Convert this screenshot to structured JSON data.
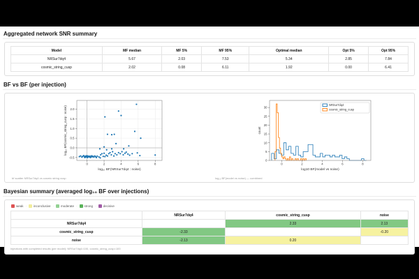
{
  "sections": {
    "snr": "Aggregated network SNR summary",
    "bf": "BF vs BF (per injection)",
    "bayes": "Bayesian summary (averaged log₁₀ BF over injections)"
  },
  "snr_table": {
    "columns": [
      "Model",
      "MF median",
      "MF 5%",
      "MF 95%",
      "Optimal median",
      "Opt 5%",
      "Opt 95%"
    ],
    "rows": [
      {
        "model": "NRSur7dq4",
        "values": [
          "5.67",
          "2.03",
          "7.53",
          "5.34",
          "2.85",
          "7.84"
        ]
      },
      {
        "model": "cosmic_string_cusp",
        "values": [
          "2.02",
          "0.08",
          "6.11",
          "1.92",
          "0.00",
          "6.41"
        ]
      }
    ]
  },
  "captions": {
    "scatter": "bf scatter NRSur7dq4 vs cosmic string cusp",
    "histogram": "log₁₀ BF(model vs noise) — combined"
  },
  "chart_data": [
    {
      "type": "scatter",
      "title": "",
      "xlabel": "log₁₀ BF(NRSur7dq4 : noise)",
      "ylabel": "log₁₀ BF(cosmic_string_cusp : noise)",
      "xlim": [
        -1.2,
        8.8
      ],
      "ylim": [
        -0.65,
        2.45
      ],
      "xticks": [
        0,
        2,
        4,
        6,
        8
      ],
      "yticks": [
        -0.5,
        0,
        0.5,
        1,
        1.5,
        2
      ],
      "grid": true,
      "zero_lines": true,
      "marker_color": "#1f77b4",
      "points": [
        [
          -0.9,
          -0.45
        ],
        [
          -0.75,
          -0.42
        ],
        [
          -0.6,
          -0.48
        ],
        [
          -0.5,
          -0.44
        ],
        [
          -0.4,
          -0.4
        ],
        [
          -0.3,
          -0.46
        ],
        [
          -0.25,
          -0.5
        ],
        [
          -0.2,
          -0.43
        ],
        [
          -0.1,
          -0.47
        ],
        [
          -0.05,
          -0.41
        ],
        [
          0,
          -0.45
        ],
        [
          0.05,
          -0.5
        ],
        [
          0.1,
          -0.42
        ],
        [
          0.15,
          -0.46
        ],
        [
          0.2,
          -0.44
        ],
        [
          0.3,
          -0.47
        ],
        [
          0.35,
          -0.43
        ],
        [
          0.4,
          -0.5
        ],
        [
          0.5,
          -0.45
        ],
        [
          0.55,
          -0.41
        ],
        [
          0.6,
          -0.46
        ],
        [
          0.7,
          -0.44
        ],
        [
          0.8,
          -0.48
        ],
        [
          0.9,
          -0.42
        ],
        [
          1,
          -0.45
        ],
        [
          1.1,
          -0.5
        ],
        [
          1.2,
          -0.43
        ],
        [
          1.4,
          -0.47
        ],
        [
          1.55,
          -0.52
        ],
        [
          1.6,
          -0.36
        ],
        [
          1.75,
          -0.3
        ],
        [
          1.9,
          -0.44
        ],
        [
          2,
          -0.28
        ],
        [
          2.1,
          -0.45
        ],
        [
          2.25,
          -0.38
        ],
        [
          2.4,
          -0.42
        ],
        [
          2.55,
          -0.3
        ],
        [
          2.7,
          -0.25
        ],
        [
          2.85,
          -0.36
        ],
        [
          3,
          -0.2
        ],
        [
          3.15,
          -0.42
        ],
        [
          3.3,
          -0.3
        ],
        [
          3.5,
          -0.36
        ],
        [
          3.7,
          -0.25
        ],
        [
          3.9,
          -0.3
        ],
        [
          4.1,
          -0.2
        ],
        [
          4.25,
          -0.36
        ],
        [
          4.45,
          -0.28
        ],
        [
          4.6,
          -0.22
        ],
        [
          4.8,
          -0.32
        ],
        [
          5,
          -0.38
        ],
        [
          5.3,
          -0.3
        ],
        [
          5.9,
          -0.26
        ],
        [
          6.2,
          -0.4
        ],
        [
          8,
          -0.37
        ],
        [
          1.5,
          -0.05
        ],
        [
          2,
          0.05
        ],
        [
          2.3,
          -0.1
        ],
        [
          2.9,
          -0.05
        ],
        [
          3.4,
          0.22
        ],
        [
          4.3,
          -0.05
        ],
        [
          4.9,
          0.1
        ],
        [
          2.4,
          0.7
        ],
        [
          2.9,
          0.68
        ],
        [
          3.2,
          0.7
        ],
        [
          5.6,
          0.85
        ],
        [
          6.3,
          0.5
        ],
        [
          2.1,
          1.6
        ],
        [
          3.7,
          1.9
        ],
        [
          4,
          1.67
        ],
        [
          5.8,
          2.25
        ]
      ]
    },
    {
      "type": "histogram",
      "style": "step",
      "title": "",
      "xlabel": "log10 BF(model vs noise)",
      "ylabel": "count",
      "xlim": [
        -1.2,
        8.8
      ],
      "ylim": [
        0,
        34
      ],
      "xticks": [
        0,
        2,
        4,
        6,
        8
      ],
      "yticks": [
        0,
        5,
        10,
        15,
        20,
        25,
        30
      ],
      "grid": false,
      "legend_position": "upper right",
      "series": [
        {
          "name": "NRSur7dq4",
          "color": "#1f77b4",
          "bin_start": -1.0,
          "bin_width": 0.24,
          "counts": [
            4,
            1,
            6,
            4,
            3,
            10,
            6,
            8,
            4,
            3,
            8,
            3,
            2,
            5,
            5,
            9,
            9,
            3,
            2,
            2,
            4,
            2,
            3,
            3,
            2,
            3,
            2,
            2,
            3,
            1,
            2,
            1,
            0,
            0,
            0,
            0,
            0,
            1,
            0
          ]
        },
        {
          "name": "cosmic_string_cusp",
          "color": "#ff7f0e",
          "bin_start": -0.66,
          "bin_width": 0.11,
          "counts": [
            5,
            32,
            27,
            13,
            7,
            4,
            2,
            1,
            2,
            1,
            0,
            1,
            0,
            2,
            0,
            1,
            0,
            0,
            1,
            0,
            1,
            0,
            0,
            1,
            0,
            1,
            0,
            1
          ]
        }
      ]
    }
  ],
  "bayes": {
    "legend": [
      {
        "label": "weak",
        "color": "#dd5353"
      },
      {
        "label": "inconclusive",
        "color": "#f1ec9b"
      },
      {
        "label": "moderate",
        "color": "#93d193"
      },
      {
        "label": "strong",
        "color": "#59b259"
      },
      {
        "label": "decisive",
        "color": "#a05aa5"
      }
    ],
    "columns": [
      "NRSur7dq4",
      "cosmic_string_cusp",
      "noise"
    ],
    "rows": [
      {
        "label": "NRSur7dq4",
        "cells": [
          {
            "value": "",
            "color": ""
          },
          {
            "value": "2.33",
            "color": "green"
          },
          {
            "value": "2.13",
            "color": "green"
          }
        ]
      },
      {
        "label": "cosmic_string_cusp",
        "cells": [
          {
            "value": "-2.33",
            "color": "green"
          },
          {
            "value": "",
            "color": ""
          },
          {
            "value": "-0.20",
            "color": "yellow"
          }
        ]
      },
      {
        "label": "noise",
        "cells": [
          {
            "value": "-2.13",
            "color": "green"
          },
          {
            "value": "0.20",
            "color": "yellow"
          },
          {
            "value": "",
            "color": ""
          }
        ]
      }
    ],
    "cell_colors": {
      "green": "#82c883",
      "yellow": "#f6f2a0"
    },
    "footnote": "Injections with completed results (per model): NRSur7dq4=100, cosmic_string_cusp=100"
  }
}
